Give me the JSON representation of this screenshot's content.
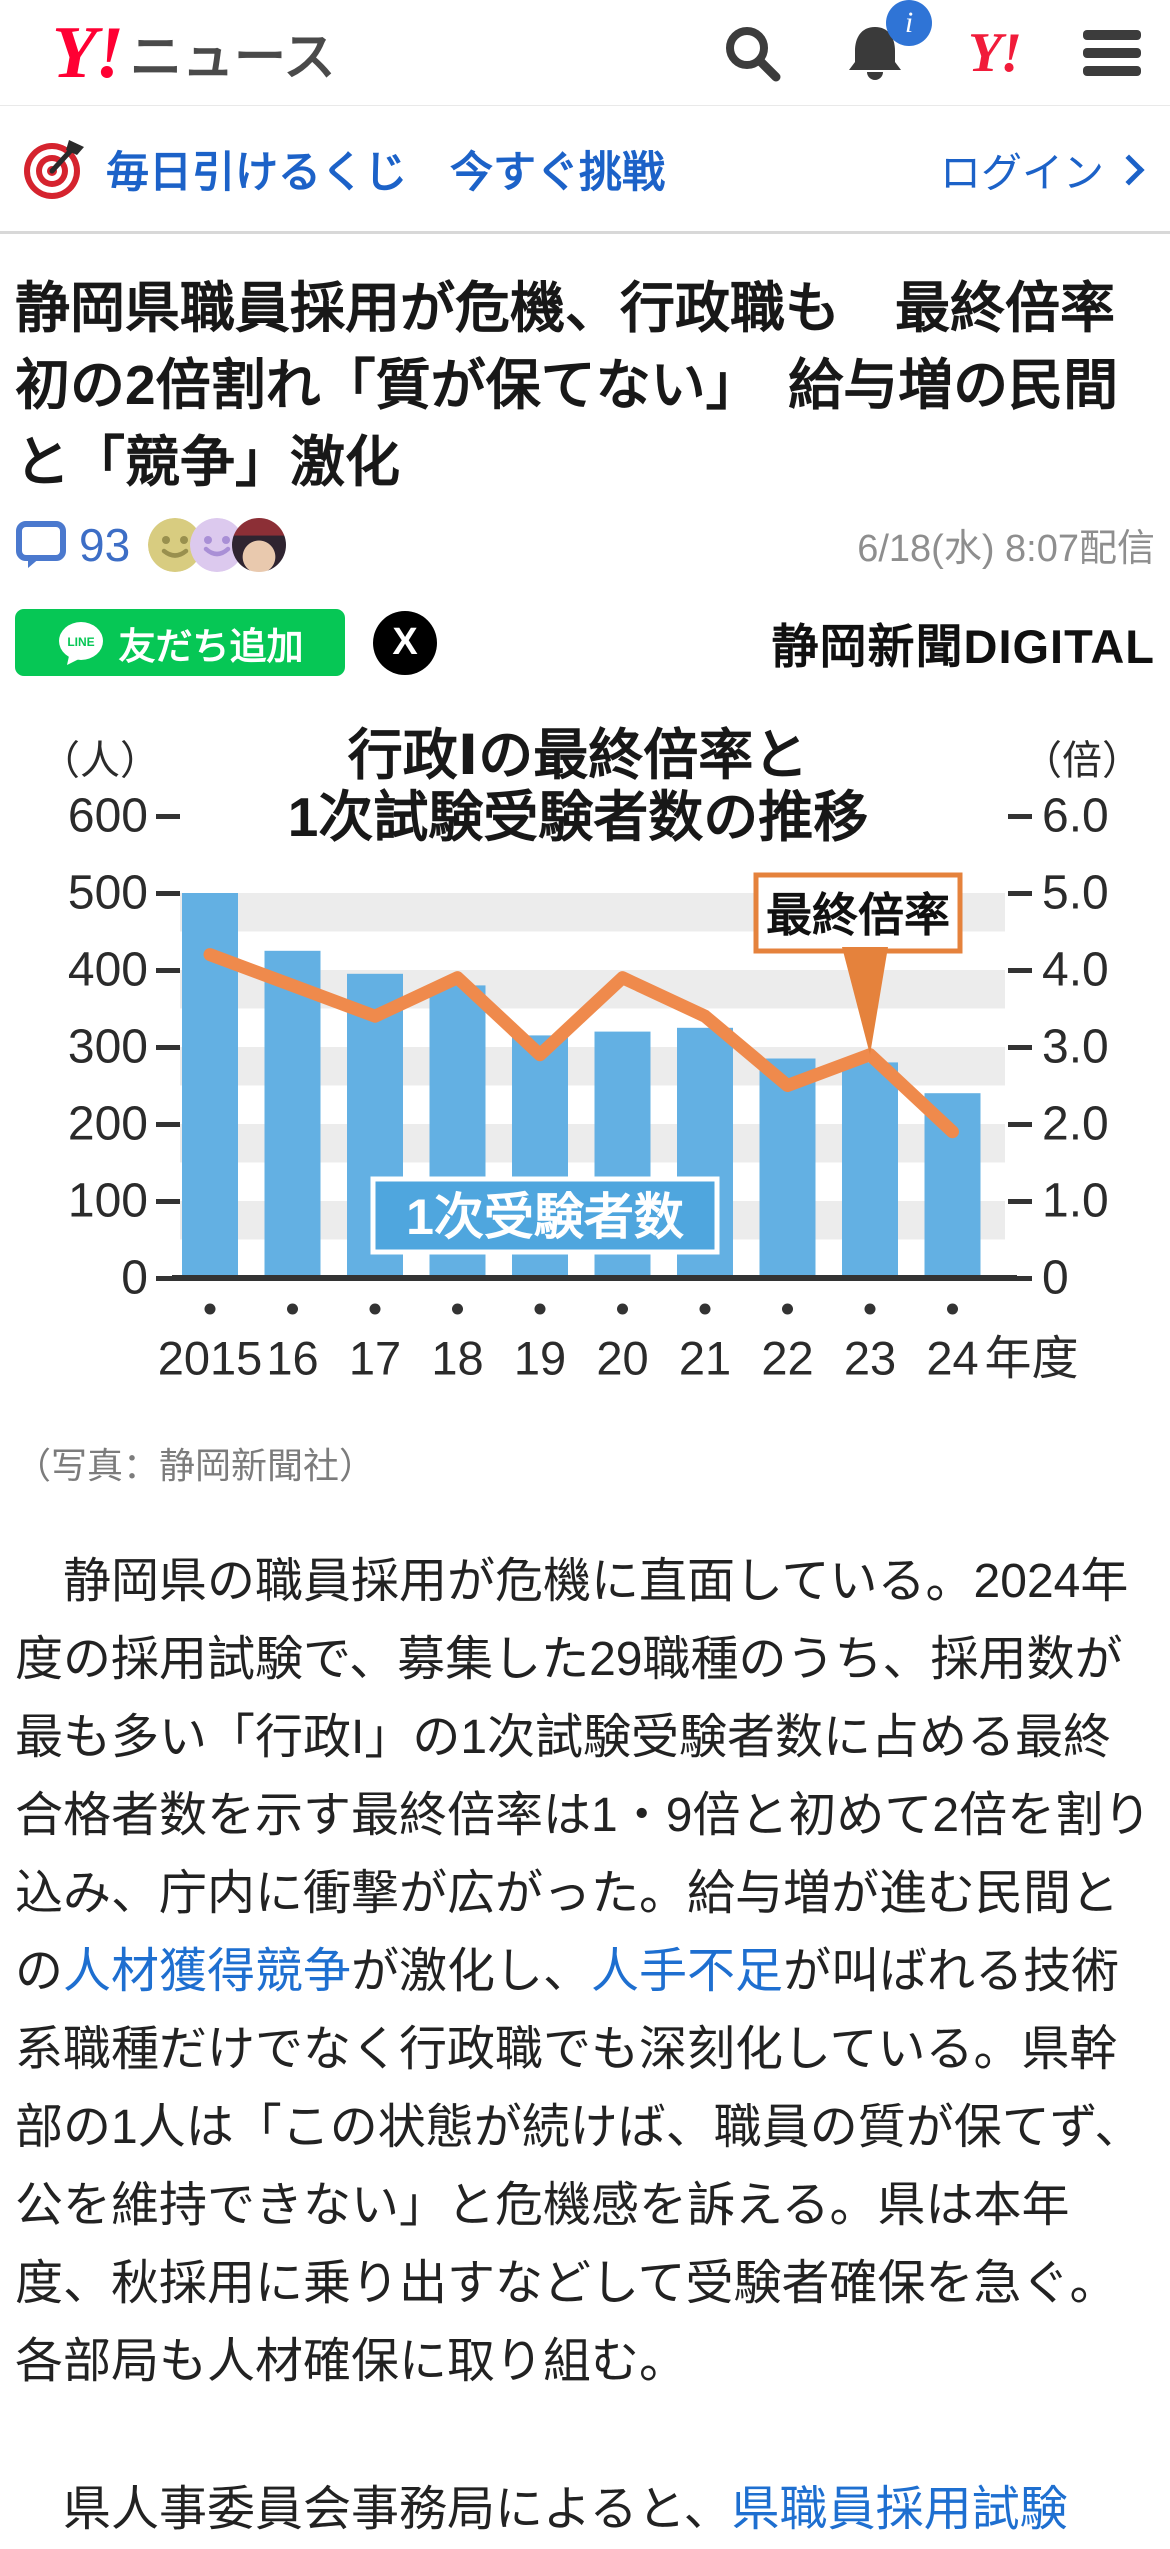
{
  "header": {
    "logo_main": "Y!",
    "logo_sub": "ニュース",
    "notification_badge": "i",
    "yahoo_mark": "Y!"
  },
  "promo": {
    "text": "毎日引けるくじ　今すぐ挑戦",
    "login_label": "ログイン"
  },
  "article": {
    "title": "静岡県職員採用が危機、行政職も　最終倍率初の2倍割れ「質が保てない」　給与増の民間と「競争」激化",
    "comment_count": "93",
    "publish_date": "6/18(水) 8:07配信",
    "line_button_label": "友だち追加",
    "line_brand": "LINE",
    "x_button_label": "X",
    "source_name": "静岡新聞DIGITAL",
    "photo_caption": "（写真：静岡新聞社）"
  },
  "body": {
    "p1_segments": [
      {
        "text": "　静岡県の職員採用が危機に直面している。2024年度の採用試験で、募集した29職種のうち、採用数が最も多い「行政I」の1次試験受験者数に占める最終合格者数を示す最終倍率は1・9倍と初めて2倍を割り込み、庁内に衝撃が広がった。給与増が進む民間との",
        "link": false
      },
      {
        "text": "人材獲得競争",
        "link": true
      },
      {
        "text": "が激化し、",
        "link": false
      },
      {
        "text": "人手不足",
        "link": true
      },
      {
        "text": "が叫ばれる技術系職種だけでなく行政職でも深刻化している。県幹部の1人は「この状態が続けば、職員の質が保てず、公を維持できない」と危機感を訴える。県は本年度、秋採用に乗り出すなどして受験者確保を急ぐ。各部局も人材確保に取り組む。",
        "link": false
      }
    ],
    "p2_segments": [
      {
        "text": "　県人事委員会事務局によると、",
        "link": false
      },
      {
        "text": "県職員採用試験",
        "link": true
      }
    ]
  },
  "chart_data": {
    "type": "bar",
    "title_lines": [
      "行政Ⅰの最終倍率と",
      "1次試験受験者数の推移"
    ],
    "categories": [
      "2015",
      "16",
      "17",
      "18",
      "19",
      "20",
      "21",
      "22",
      "23",
      "24"
    ],
    "category_suffix": "年度",
    "left_axis": {
      "unit": "（人）",
      "min": 0,
      "max": 600,
      "step": 100,
      "ticks": [
        "600",
        "500",
        "400",
        "300",
        "200",
        "100",
        "0"
      ]
    },
    "right_axis": {
      "unit": "（倍）",
      "min": 0,
      "max": 6.0,
      "step": 1.0,
      "ticks": [
        "6.0",
        "5.0",
        "4.0",
        "3.0",
        "2.0",
        "1.0",
        "0"
      ]
    },
    "series": [
      {
        "name": "1次受験者数",
        "kind": "bar",
        "axis": "left",
        "color": "#63B0E3",
        "values": [
          500,
          425,
          395,
          380,
          315,
          320,
          325,
          285,
          280,
          240
        ]
      },
      {
        "name": "最終倍率",
        "kind": "line",
        "axis": "right",
        "color": "#EF8A4C",
        "values": [
          4.2,
          3.8,
          3.4,
          3.9,
          2.9,
          3.9,
          3.4,
          2.5,
          2.9,
          1.9
        ]
      }
    ],
    "callout": {
      "label": "最終倍率",
      "target_index": 8,
      "border_color": "#E5823C"
    },
    "bar_label": "1次受験者数",
    "bar_label_color": "#4FA6DE",
    "band_color": "#ECECEC",
    "grid": "zebra-bands",
    "legend_position": "in-plot"
  }
}
